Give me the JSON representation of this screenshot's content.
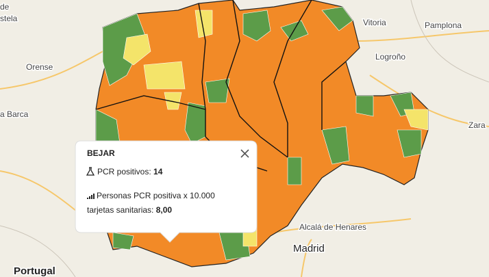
{
  "map": {
    "places": [
      "de",
      "stela",
      "Orense",
      "a Barca",
      "Vitoria",
      "Pamplona",
      "Logroño",
      "Zara",
      "Alcalá de Henares",
      "Madrid",
      "Portugal"
    ]
  },
  "popup": {
    "title": "BEJAR",
    "pcr_label": "PCR positivos:",
    "pcr_value": "14",
    "rate_label": "Personas PCR positiva x 10.000",
    "rate_label2": "tarjetas sanitarias:",
    "rate_value": "8,00"
  }
}
